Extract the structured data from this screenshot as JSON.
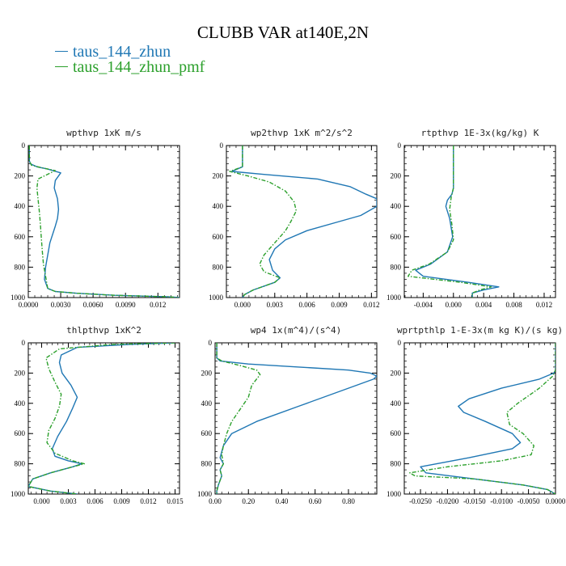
{
  "title": "CLUBB VAR at140E,2N",
  "legend": [
    {
      "label": "taus_144_zhun",
      "color": "#1f77b4"
    },
    {
      "label": "taus_144_zhun_pmf",
      "color": "#2ca02c"
    }
  ],
  "chart_data": [
    {
      "type": "line",
      "title": "wpthvp   1xK m/s",
      "xlim": [
        0,
        0.014
      ],
      "ylim": [
        1000,
        0
      ],
      "xticks": [
        0,
        0.003,
        0.006,
        0.009,
        0.012
      ],
      "xtick_labels": [
        "0.0000",
        "0.0030",
        "0.0060",
        "0.0090",
        "0.012"
      ],
      "yticks": [
        0,
        200,
        400,
        600,
        800,
        1000
      ],
      "series": [
        {
          "name": "taus_144_zhun",
          "color": "#1f77b4",
          "dashed": false,
          "x": [
            0.0001,
            0.0001,
            0.0002,
            0.0008,
            0.0018,
            0.003,
            0.0025,
            0.0024,
            0.0027,
            0.0028,
            0.0027,
            0.0025,
            0.002,
            0.0017,
            0.0016,
            0.0015,
            0.0018,
            0.0025,
            0.0045,
            0.008,
            0.013,
            0.014
          ],
          "y": [
            0,
            100,
            120,
            140,
            155,
            180,
            230,
            280,
            350,
            420,
            480,
            530,
            640,
            760,
            800,
            880,
            940,
            960,
            972,
            985,
            995,
            1000
          ]
        },
        {
          "name": "taus_144_zhun_pmf",
          "color": "#2ca02c",
          "dashed": true,
          "x": [
            0.0001,
            0.0001,
            0.0003,
            0.0015,
            0.0025,
            0.0009,
            0.0008,
            0.0009,
            0.001,
            0.0011,
            0.0012,
            0.0013,
            0.0014,
            0.0016,
            0.0018,
            0.0025,
            0.0045,
            0.008,
            0.013,
            0.014
          ],
          "y": [
            0,
            100,
            130,
            150,
            165,
            220,
            280,
            350,
            420,
            500,
            600,
            700,
            780,
            860,
            940,
            960,
            972,
            985,
            995,
            1000
          ]
        }
      ]
    },
    {
      "type": "line",
      "title": "wp2thvp   1xK m^2/s^2",
      "xlim": [
        -0.0015,
        0.0125
      ],
      "ylim": [
        1000,
        0
      ],
      "xticks": [
        0,
        0.003,
        0.006,
        0.009,
        0.012
      ],
      "xtick_labels": [
        "0.000",
        "0.003",
        "0.006",
        "0.009",
        "0.012"
      ],
      "yticks": [
        0,
        200,
        400,
        600,
        800,
        1000
      ],
      "series": [
        {
          "name": "taus_144_zhun",
          "color": "#1f77b4",
          "dashed": false,
          "x": [
            0.0,
            0.0,
            -0.001,
            0.002,
            0.007,
            0.01,
            0.0115,
            0.0125,
            0.0125,
            0.011,
            0.009,
            0.006,
            0.004,
            0.003,
            0.0025,
            0.0028,
            0.0035,
            0.003,
            0.001,
            0.0002,
            0.0
          ],
          "y": [
            0,
            140,
            170,
            190,
            220,
            270,
            320,
            350,
            400,
            460,
            500,
            560,
            620,
            680,
            750,
            820,
            870,
            900,
            950,
            980,
            1000
          ]
        },
        {
          "name": "taus_144_zhun_pmf",
          "color": "#2ca02c",
          "dashed": true,
          "x": [
            0.0,
            0.0,
            -0.0012,
            0.0005,
            0.0025,
            0.004,
            0.0048,
            0.005,
            0.0045,
            0.004,
            0.003,
            0.002,
            0.0016,
            0.002,
            0.0035,
            0.003,
            0.001,
            0.0002,
            0.0
          ],
          "y": [
            0,
            140,
            170,
            200,
            240,
            300,
            370,
            430,
            500,
            560,
            640,
            720,
            780,
            830,
            870,
            900,
            950,
            980,
            1000
          ]
        }
      ]
    },
    {
      "type": "line",
      "title": "rtpthvp   1E-3x(kg/kg) K",
      "xlim": [
        -0.0065,
        0.0135
      ],
      "ylim": [
        1000,
        0
      ],
      "xticks": [
        -0.004,
        0,
        0.004,
        0.008,
        0.012
      ],
      "xtick_labels": [
        "-0.004",
        "0.000",
        "0.004",
        "0.008",
        "0.012"
      ],
      "yticks": [
        0,
        200,
        400,
        600,
        800,
        1000
      ],
      "series": [
        {
          "name": "taus_144_zhun",
          "color": "#1f77b4",
          "dashed": false,
          "x": [
            0.0,
            0.0,
            -0.0002,
            -0.0008,
            -0.001,
            -0.0005,
            -0.0001,
            -0.0008,
            -0.003,
            -0.005,
            -0.004,
            0.002,
            0.006,
            0.004,
            0.0025,
            0.0025
          ],
          "y": [
            0,
            280,
            320,
            360,
            400,
            480,
            600,
            700,
            780,
            820,
            860,
            900,
            930,
            950,
            970,
            1000
          ]
        },
        {
          "name": "taus_144_zhun_pmf",
          "color": "#2ca02c",
          "dashed": true,
          "x": [
            0.0,
            0.0,
            -0.0003,
            -0.0005,
            -0.0002,
            0.0,
            -0.0008,
            -0.0032,
            -0.0055,
            -0.006,
            0.001,
            0.005,
            0.0035,
            0.0025,
            0.0025
          ],
          "y": [
            0,
            280,
            340,
            420,
            520,
            620,
            700,
            780,
            820,
            860,
            900,
            930,
            950,
            970,
            1000
          ]
        }
      ]
    },
    {
      "type": "line",
      "title": "thlpthvp   1xK^2",
      "xlim": [
        -0.0015,
        0.0155
      ],
      "ylim": [
        1000,
        0
      ],
      "xticks": [
        0,
        0.003,
        0.006,
        0.009,
        0.012,
        0.015
      ],
      "xtick_labels": [
        "0.000",
        "0.003",
        "0.006",
        "0.009",
        "0.012",
        "0.015"
      ],
      "yticks": [
        0,
        200,
        400,
        600,
        800,
        1000
      ],
      "series": [
        {
          "name": "taus_144_zhun",
          "color": "#1f77b4",
          "dashed": false,
          "x": [
            0.015,
            0.01,
            0.004,
            0.0022,
            0.002,
            0.0023,
            0.0033,
            0.004,
            0.0035,
            0.0028,
            0.0018,
            0.0012,
            0.0015,
            0.003,
            0.0045,
            0.0035,
            0.001,
            -0.001,
            -0.0015,
            0.001,
            0.004
          ],
          "y": [
            0,
            10,
            30,
            80,
            130,
            200,
            280,
            360,
            430,
            520,
            620,
            700,
            750,
            780,
            800,
            820,
            860,
            900,
            950,
            980,
            1000
          ]
        },
        {
          "name": "taus_144_zhun_pmf",
          "color": "#2ca02c",
          "dashed": true,
          "x": [
            0.015,
            0.008,
            0.002,
            0.0005,
            0.0008,
            0.0015,
            0.0022,
            0.002,
            0.0015,
            0.0008,
            0.0006,
            0.0015,
            0.0035,
            0.0048,
            0.0035,
            0.001,
            -0.001,
            -0.0015,
            0.001,
            0.004
          ],
          "y": [
            0,
            10,
            40,
            100,
            170,
            260,
            340,
            420,
            500,
            580,
            660,
            730,
            780,
            800,
            820,
            860,
            900,
            950,
            980,
            1000
          ]
        }
      ]
    },
    {
      "type": "line",
      "title": "wp4   1x(m^4)/(s^4)",
      "xlim": [
        0,
        0.97
      ],
      "ylim": [
        1000,
        0
      ],
      "xticks": [
        0,
        0.2,
        0.4,
        0.6,
        0.8
      ],
      "xtick_labels": [
        "0.00",
        "0.20",
        "0.40",
        "0.60",
        "0.80"
      ],
      "yticks": [
        0,
        200,
        400,
        600,
        800,
        1000
      ],
      "series": [
        {
          "name": "taus_144_zhun",
          "color": "#1f77b4",
          "dashed": false,
          "x": [
            0.01,
            0.01,
            0.03,
            0.2,
            0.5,
            0.8,
            0.93,
            0.97,
            0.95,
            0.8,
            0.5,
            0.25,
            0.1,
            0.05,
            0.03,
            0.05,
            0.03,
            0.04,
            0.02,
            0.01,
            0.01
          ],
          "y": [
            0,
            100,
            120,
            140,
            160,
            180,
            200,
            220,
            240,
            300,
            420,
            520,
            600,
            680,
            760,
            800,
            840,
            880,
            940,
            980,
            1000
          ]
        },
        {
          "name": "taus_144_zhun_pmf",
          "color": "#2ca02c",
          "dashed": true,
          "x": [
            0.01,
            0.01,
            0.04,
            0.15,
            0.25,
            0.27,
            0.22,
            0.2,
            0.15,
            0.1,
            0.07,
            0.05,
            0.04,
            0.05,
            0.03,
            0.04,
            0.02,
            0.01,
            0.01
          ],
          "y": [
            0,
            100,
            120,
            150,
            180,
            210,
            280,
            360,
            440,
            520,
            600,
            680,
            740,
            800,
            840,
            880,
            940,
            980,
            1000
          ]
        }
      ]
    },
    {
      "type": "line",
      "title": "wprtpthlp   1-E-3x(m kg K)/(s kg)",
      "xlim": [
        -0.028,
        0.0
      ],
      "ylim": [
        1000,
        0
      ],
      "xticks": [
        -0.025,
        -0.02,
        -0.015,
        -0.01,
        -0.005,
        0.0
      ],
      "xtick_labels": [
        "-0.0250",
        "-0.0200",
        "-0.0150",
        "-0.0100",
        "-0.0050",
        "0.0000"
      ],
      "yticks": [
        0,
        200,
        400,
        600,
        800,
        1000
      ],
      "series": [
        {
          "name": "taus_144_zhun",
          "color": "#1f77b4",
          "dashed": false,
          "x": [
            0.0,
            0.0,
            -0.0003,
            -0.003,
            -0.01,
            -0.016,
            -0.018,
            -0.017,
            -0.013,
            -0.008,
            -0.0065,
            -0.008,
            -0.016,
            -0.025,
            -0.024,
            -0.015,
            -0.006,
            -0.0015,
            0.0
          ],
          "y": [
            0,
            180,
            200,
            240,
            300,
            370,
            420,
            460,
            520,
            600,
            660,
            700,
            760,
            820,
            860,
            900,
            940,
            970,
            1000
          ]
        },
        {
          "name": "taus_144_zhun_pmf",
          "color": "#2ca02c",
          "dashed": true,
          "x": [
            0.0,
            0.0,
            -0.0005,
            -0.003,
            -0.007,
            -0.009,
            -0.0085,
            -0.006,
            -0.004,
            -0.0045,
            -0.01,
            -0.02,
            -0.027,
            -0.026,
            -0.015,
            -0.006,
            -0.0015,
            0.0
          ],
          "y": [
            0,
            180,
            220,
            300,
            400,
            460,
            540,
            600,
            680,
            740,
            780,
            820,
            860,
            880,
            900,
            940,
            970,
            1000
          ]
        }
      ]
    }
  ]
}
